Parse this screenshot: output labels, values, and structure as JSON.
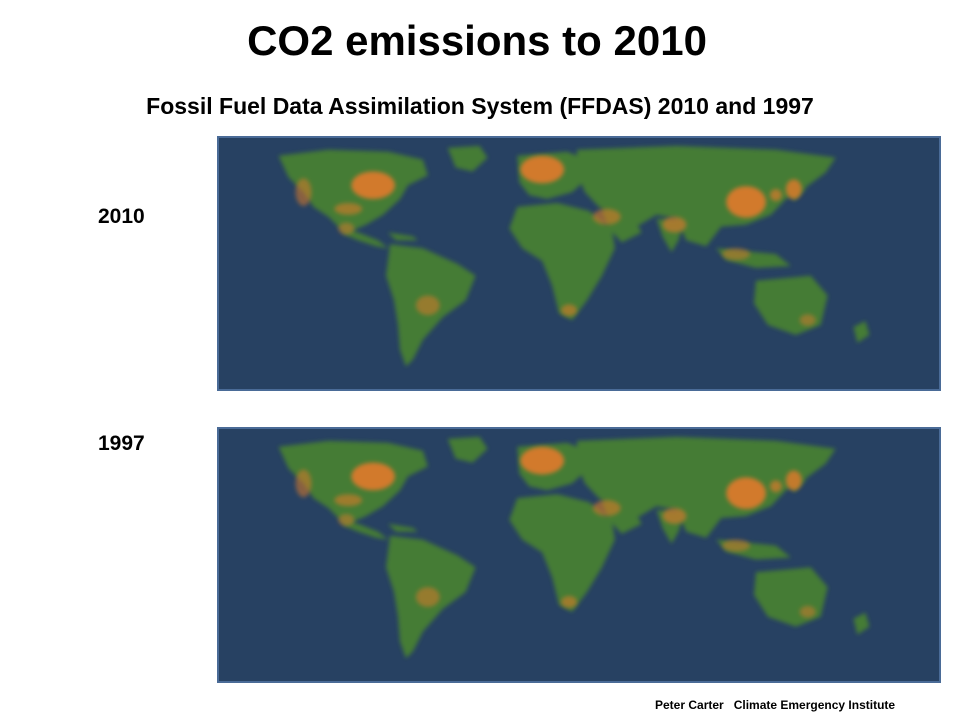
{
  "slide": {
    "title": "CO2 emissions to 2010",
    "subtitle": "Fossil Fuel Data Assimilation System (FFDAS)  2010 and 1997",
    "credit": "Peter Carter   Climate Emergency Institute"
  },
  "maps": [
    {
      "year_label": "2010"
    },
    {
      "year_label": "1997"
    }
  ],
  "colors": {
    "ocean": "#274162",
    "panel_border": "#4a6b97",
    "land_low": "#2e6a3a",
    "land_mid": "#6e9a2a",
    "land_high": "#d97a2a"
  }
}
